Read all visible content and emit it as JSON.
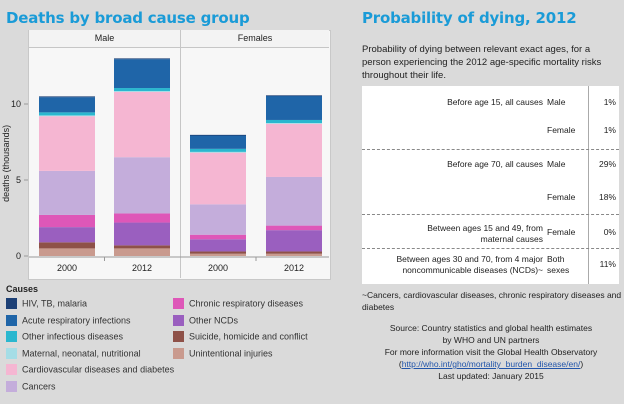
{
  "left_panel": {
    "title": "Deaths by broad cause group",
    "legend_title": "Causes"
  },
  "right_panel": {
    "title": "Probability of dying, 2012",
    "description": "Probability of dying between relevant exact ages, for a person experiencing the 2012 age-specific mortality risks throughout their life.",
    "rows": [
      {
        "label": "Before age 15, all causes",
        "sex": "Male",
        "value": "1%"
      },
      {
        "label": "",
        "sex": "Female",
        "value": "1%"
      },
      {
        "label": "Before age 70, all causes",
        "sex": "Male",
        "value": "29%"
      },
      {
        "label": "",
        "sex": "Female",
        "value": "18%"
      },
      {
        "label": "Between ages 15 and 49, from maternal causes",
        "sex": "Female",
        "value": "0%"
      },
      {
        "label": "Between ages 30 and 70, from 4 major noncommunicable diseases (NCDs)~",
        "sex": "Both sexes",
        "value": "11%"
      }
    ],
    "footnote": "~Cancers, cardiovascular diseases, chronic respiratory diseases and diabetes",
    "source_line1": "Source:  Country statistics and global health estimates",
    "source_line2": "by WHO and UN partners",
    "more_info": "For more information visit the Global Health Observatory",
    "link_open": "(",
    "link_text": "http://who.int/gho/mortality_burden_disease/en/",
    "link_close": ")",
    "last_updated": "Last updated: January 2015"
  },
  "chart_data": {
    "type": "bar",
    "stacked": true,
    "title": "Deaths by broad cause group",
    "xlabel": "",
    "ylabel": "deaths (thousands)",
    "ylim": [
      0,
      13.5
    ],
    "yticks": [
      0,
      5,
      10
    ],
    "grid": false,
    "facets": [
      "Male",
      "Females"
    ],
    "categories": [
      "2000",
      "2012"
    ],
    "legend_title": "Causes",
    "legend_position": "bottom",
    "series": [
      {
        "name": "Unintentional injuries",
        "color": "#c99a8e",
        "values": {
          "Male": [
            0.5,
            0.5
          ],
          "Females": [
            0.15,
            0.15
          ]
        }
      },
      {
        "name": "Suicide, homicide and conflict",
        "color": "#8e5148",
        "values": {
          "Male": [
            0.4,
            0.2
          ],
          "Females": [
            0.15,
            0.15
          ]
        }
      },
      {
        "name": "Other NCDs",
        "color": "#9a5fbf",
        "values": {
          "Male": [
            1.0,
            1.5
          ],
          "Females": [
            0.8,
            1.4
          ]
        }
      },
      {
        "name": "Chronic respiratory diseases",
        "color": "#de57b8",
        "values": {
          "Male": [
            0.8,
            0.6
          ],
          "Females": [
            0.3,
            0.3
          ]
        }
      },
      {
        "name": "Cancers",
        "color": "#c4addb",
        "values": {
          "Male": [
            2.9,
            3.7
          ],
          "Females": [
            2.0,
            3.2
          ]
        }
      },
      {
        "name": "Cardiovascular diseases and diabetes",
        "color": "#f5b6d2",
        "values": {
          "Male": [
            3.6,
            4.3
          ],
          "Females": [
            3.4,
            3.5
          ]
        }
      },
      {
        "name": "Maternal, neonatal, nutritional",
        "color": "#a5dde6",
        "values": {
          "Male": [
            0.05,
            0.05
          ],
          "Females": [
            0.05,
            0.05
          ]
        }
      },
      {
        "name": "Other infectious diseases",
        "color": "#2ab7cf",
        "values": {
          "Male": [
            0.2,
            0.2
          ],
          "Females": [
            0.2,
            0.2
          ]
        }
      },
      {
        "name": "Acute respiratory infections",
        "color": "#1f65a8",
        "values": {
          "Male": [
            1.0,
            1.9
          ],
          "Females": [
            0.9,
            1.6
          ]
        }
      },
      {
        "name": "HIV, TB, malaria",
        "color": "#1c3f75",
        "values": {
          "Male": [
            0.05,
            0.05
          ],
          "Females": [
            0.02,
            0.02
          ]
        }
      }
    ],
    "legend_order": [
      "HIV, TB, malaria",
      "Acute respiratory infections",
      "Other infectious diseases",
      "Maternal, neonatal, nutritional",
      "Cardiovascular diseases and diabetes",
      "Cancers",
      "Chronic respiratory diseases",
      "Other NCDs",
      "Suicide, homicide and conflict",
      "Unintentional injuries"
    ]
  }
}
